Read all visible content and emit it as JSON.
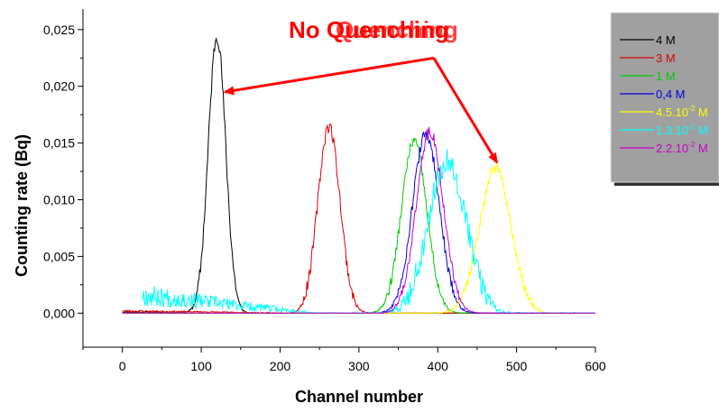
{
  "chart_data": {
    "type": "line",
    "title": "",
    "overlay_title": "No Quenching",
    "overlay_title_ghost": "Quenching",
    "xlabel": "Channel number",
    "ylabel": "Counting rate (Bq)",
    "xlim": [
      -50,
      600
    ],
    "ylim": [
      -0.003,
      0.0265
    ],
    "x_ticks": [
      0,
      100,
      200,
      300,
      400,
      500,
      600
    ],
    "x_tick_labels": [
      "0",
      "100",
      "200",
      "300",
      "400",
      "500",
      "600"
    ],
    "y_ticks": [
      0.0,
      0.005,
      0.01,
      0.015,
      0.02,
      0.025
    ],
    "y_tick_labels": [
      "0,000",
      "0,005",
      "0,010",
      "0,015",
      "0,020",
      "0,025"
    ],
    "grid": false,
    "legend_position": "top-right",
    "legend_background": "#a0a0a0",
    "series": [
      {
        "name": "4 M",
        "label_base": "4 M",
        "label_sup": "",
        "label_tail": "",
        "color": "#000000",
        "peak_x": 120,
        "peak_y": 0.0245,
        "sigma": 11,
        "noise": 0.0007,
        "seed": 11,
        "x_start": 0,
        "x_end": 600,
        "tail_amp": 0.0001
      },
      {
        "name": "3 M",
        "label_base": "3 M",
        "label_sup": "",
        "label_tail": "",
        "color": "#e00000",
        "peak_x": 262,
        "peak_y": 0.0165,
        "sigma": 14,
        "noise": 0.0006,
        "seed": 23,
        "x_start": 0,
        "x_end": 600,
        "tail_amp": 0.0002
      },
      {
        "name": "1 M",
        "label_base": "1 M",
        "label_sup": "",
        "label_tail": "",
        "color": "#00cc00",
        "peak_x": 370,
        "peak_y": 0.0152,
        "sigma": 16,
        "noise": 0.0005,
        "seed": 37,
        "x_start": 0,
        "x_end": 600,
        "tail_amp": 0.0
      },
      {
        "name": "0,4 M",
        "label_base": "0,4 M",
        "label_sup": "",
        "label_tail": "",
        "color": "#0000dd",
        "peak_x": 385,
        "peak_y": 0.0158,
        "sigma": 17,
        "noise": 0.0005,
        "seed": 41,
        "x_start": 0,
        "x_end": 600,
        "tail_amp": 0.0
      },
      {
        "name": "4.5.10-2 M",
        "label_base": "4.5.10",
        "label_sup": "-2",
        "label_tail": " M",
        "color": "#ffff00",
        "peak_x": 473,
        "peak_y": 0.0128,
        "sigma": 20,
        "noise": 0.0005,
        "seed": 53,
        "x_start": 0,
        "x_end": 600,
        "tail_amp": 0.0
      },
      {
        "name": "1.3.10-2 M",
        "label_base": "1.3.10",
        "label_sup": "-2",
        "label_tail": " M",
        "color": "#00ffff",
        "peak_x": 412,
        "peak_y": 0.0135,
        "sigma": 24,
        "noise": 0.0012,
        "seed": 67,
        "x_start": 25,
        "x_end": 600,
        "tail_amp": 0.0016
      },
      {
        "name": "2.2.10-2 M",
        "label_base": "2.2.10",
        "label_sup": "-2",
        "label_tail": " M",
        "color": "#cc00cc",
        "peak_x": 390,
        "peak_y": 0.016,
        "sigma": 17,
        "noise": 0.0005,
        "seed": 79,
        "x_start": 0,
        "x_end": 600,
        "tail_amp": 0.0
      }
    ],
    "annotations": [
      {
        "type": "arrow",
        "color": "#ff0000",
        "from": [
          395,
          0.0225
        ],
        "to": [
          130,
          0.0195
        ]
      },
      {
        "type": "arrow",
        "color": "#ff0000",
        "from": [
          395,
          0.0225
        ],
        "to": [
          475,
          0.0133
        ]
      }
    ]
  }
}
